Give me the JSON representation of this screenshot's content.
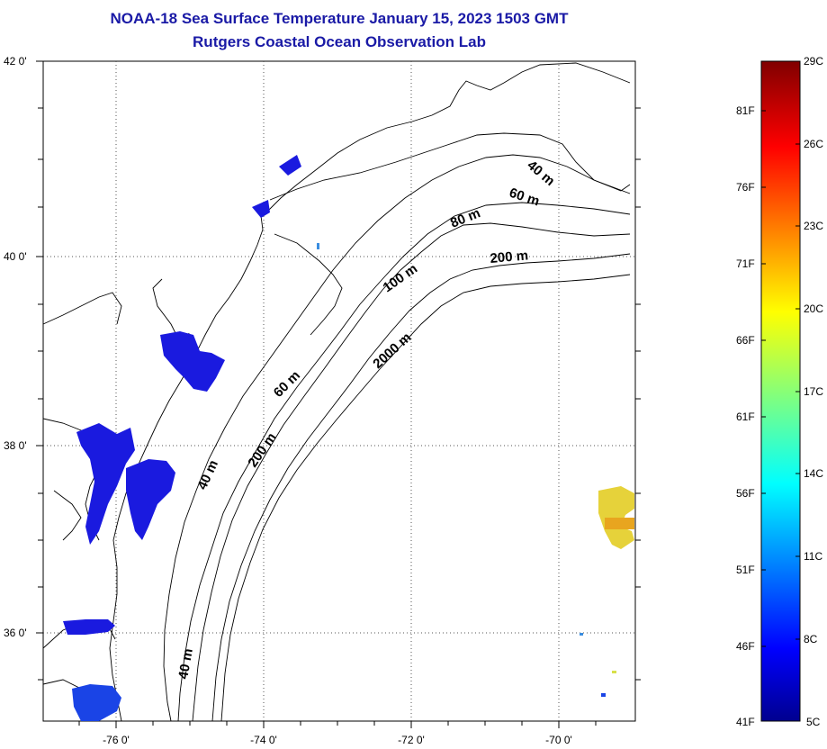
{
  "header": {
    "title": "NOAA-18 Sea Surface Temperature January 15, 2023 1503 GMT",
    "subtitle": "Rutgers Coastal Ocean Observation Lab"
  },
  "map": {
    "lat_ticks": [
      "42 0'",
      "40 0'",
      "38 0'",
      "36 0'"
    ],
    "lon_ticks": [
      "-76 0'",
      "-74 0'",
      "-72 0'",
      "-70 0'"
    ],
    "depth_contours": [
      "40 m",
      "60 m",
      "80 m",
      "200 m",
      "100 m",
      "2000 m",
      "60 m",
      "200 m",
      "40 m",
      "40 m"
    ],
    "land_color": "#ffffff",
    "coast_color": "#000000"
  },
  "colorbar": {
    "fahrenheit": [
      "81F",
      "76F",
      "71F",
      "66F",
      "61F",
      "56F",
      "51F",
      "46F",
      "41F"
    ],
    "celsius": [
      "29C",
      "26C",
      "23C",
      "20C",
      "17C",
      "14C",
      "11C",
      "8C",
      "5C"
    ],
    "range_c": [
      5,
      29
    ],
    "colormap": "jet"
  },
  "colors": {
    "title": "#1a1aa6",
    "cold": "#1a1adf",
    "warm": "#e6c81e"
  }
}
